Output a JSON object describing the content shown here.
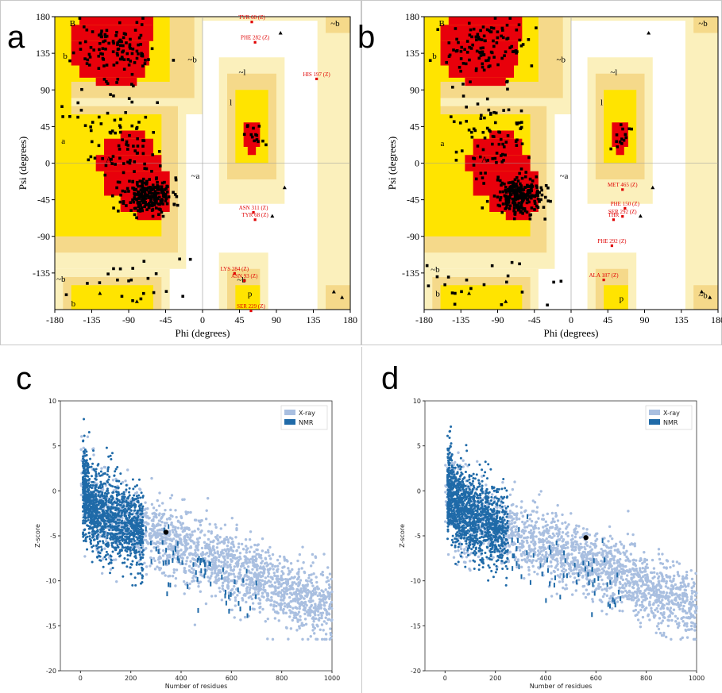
{
  "panels": {
    "a": "a",
    "b": "b",
    "c": "c",
    "d": "d"
  },
  "colors": {
    "favoured": "#e8000b",
    "allowed": "#ffe400",
    "generous": "#f5d98a",
    "outer": "#fbf0bc",
    "xray": "#a9bfe0",
    "nmr": "#1f6aa8",
    "point": "#000000",
    "residue_label": "#e00000"
  },
  "chart_data": [
    {
      "type": "scatter",
      "panel": "a",
      "xlabel": "Phi (degrees)",
      "ylabel": "Psi (degrees)",
      "xlim": [
        -180,
        180
      ],
      "ylim": [
        -180,
        180
      ],
      "x_ticks": [
        -180,
        -135,
        -90,
        -45,
        0,
        45,
        90,
        135,
        180
      ],
      "y_ticks": [
        -135,
        -90,
        -45,
        0,
        45,
        90,
        135,
        180
      ],
      "region_labels": [
        {
          "text": "B",
          "phi": -162,
          "psi": 172
        },
        {
          "text": "b",
          "phi": -170,
          "psi": 132
        },
        {
          "text": "~b",
          "phi": -18,
          "psi": 128
        },
        {
          "text": "A",
          "phi": -118,
          "psi": 5
        },
        {
          "text": "a",
          "phi": -172,
          "psi": 28
        },
        {
          "text": "~a",
          "phi": -14,
          "psi": -15
        },
        {
          "text": "~l",
          "phi": 44,
          "psi": 112
        },
        {
          "text": "l",
          "phi": 33,
          "psi": 75
        },
        {
          "text": "~b",
          "phi": -178,
          "psi": -142
        },
        {
          "text": "b",
          "phi": -160,
          "psi": -172
        },
        {
          "text": "~b",
          "phi": 156,
          "psi": 172
        },
        {
          "text": "~b",
          "phi": 42,
          "psi": -143
        },
        {
          "text": "p",
          "phi": 55,
          "psi": -160
        }
      ],
      "residue_labels": [
        {
          "text": "TYR 68 (Z)",
          "phi": 60,
          "psi": 177
        },
        {
          "text": "PHE 282 (Z)",
          "phi": 64,
          "psi": 152
        },
        {
          "text": "HIS 197 (Z)",
          "phi": 139,
          "psi": 107
        },
        {
          "text": "ASN 311 (Z)",
          "phi": 62,
          "psi": -57
        },
        {
          "text": "TYR 68 (Z)",
          "phi": 64,
          "psi": -66
        },
        {
          "text": "LYS 284 (Z)",
          "phi": 39,
          "psi": -132
        },
        {
          "text": "ASN 93 (Z)",
          "phi": 51,
          "psi": -141
        },
        {
          "text": "SER 229 (Z)",
          "phi": 59,
          "psi": -178
        }
      ],
      "points_description": "Dense cluster of residues in the right-handed alpha-helix region (phi about -65, psi about -40), scattered residues in the beta-sheet region, few in left-handed helix region"
    },
    {
      "type": "scatter",
      "panel": "b",
      "xlabel": "Phi (degrees)",
      "ylabel": "Psi (degrees)",
      "xlim": [
        -180,
        180
      ],
      "ylim": [
        -180,
        180
      ],
      "x_ticks": [
        -180,
        -135,
        -90,
        -45,
        0,
        45,
        90,
        135,
        180
      ],
      "y_ticks": [
        -135,
        -90,
        -45,
        0,
        45,
        90,
        135,
        180
      ],
      "region_labels": [
        {
          "text": "B",
          "phi": -162,
          "psi": 172
        },
        {
          "text": "b",
          "phi": -170,
          "psi": 132
        },
        {
          "text": "~b",
          "phi": -18,
          "psi": 128
        },
        {
          "text": "A",
          "phi": -110,
          "psi": 5
        },
        {
          "text": "a",
          "phi": -160,
          "psi": 25
        },
        {
          "text": "~a",
          "phi": -14,
          "psi": -15
        },
        {
          "text": "~l",
          "phi": 48,
          "psi": 112
        },
        {
          "text": "l",
          "phi": 36,
          "psi": 75
        },
        {
          "text": "~b",
          "phi": -172,
          "psi": -130
        },
        {
          "text": "b",
          "phi": -166,
          "psi": -160
        },
        {
          "text": "~b",
          "phi": 156,
          "psi": 172
        },
        {
          "text": "~b",
          "phi": 156,
          "psi": -162
        },
        {
          "text": "p",
          "phi": 59,
          "psi": -166
        }
      ],
      "residue_labels": [
        {
          "text": "MET 465 (Z)",
          "phi": 63,
          "psi": -29
        },
        {
          "text": "PHE 150 (Z)",
          "phi": 66,
          "psi": -52
        },
        {
          "text": "SER 292 (Z)",
          "phi": 63,
          "psi": -62
        },
        {
          "text": "THR",
          "phi": 52,
          "psi": -66
        },
        {
          "text": "PHE 292 (Z)",
          "phi": 50,
          "psi": -98
        },
        {
          "text": "ALA 187 (Z)",
          "phi": 40,
          "psi": -140
        }
      ],
      "points_description": "Dense cluster of residues in the right-handed alpha-helix region, many in the beta region, a group in the left-handed helix region"
    },
    {
      "type": "scatter",
      "panel": "c",
      "xlabel": "Number of residues",
      "ylabel": "Z-score",
      "xlim": [
        -80,
        1000
      ],
      "ylim": [
        -20,
        10
      ],
      "x_ticks": [
        0,
        200,
        400,
        600,
        800,
        1000
      ],
      "y_ticks": [
        10,
        5,
        0,
        -5,
        -10,
        -15,
        -20
      ],
      "legend": [
        "X-ray",
        "NMR"
      ],
      "legend_position": "top-right",
      "series": [
        {
          "name": "X-ray",
          "description": "reference X-ray structures, Z-score decreasing from about 0 to -13 with size"
        },
        {
          "name": "NMR",
          "description": "reference NMR structures, mostly below 300 residues"
        }
      ],
      "highlight": {
        "x": 340,
        "y": -4.6
      }
    },
    {
      "type": "scatter",
      "panel": "d",
      "xlabel": "Number of residues",
      "ylabel": "Z-score",
      "xlim": [
        -80,
        1000
      ],
      "ylim": [
        -20,
        10
      ],
      "x_ticks": [
        0,
        200,
        400,
        600,
        800,
        1000
      ],
      "y_ticks": [
        10,
        5,
        0,
        -5,
        -10,
        -15,
        -20
      ],
      "legend": [
        "X-ray",
        "NMR"
      ],
      "legend_position": "top-right",
      "series": [
        {
          "name": "X-ray",
          "description": "reference X-ray structures"
        },
        {
          "name": "NMR",
          "description": "reference NMR structures"
        }
      ],
      "highlight": {
        "x": 560,
        "y": -5.2
      }
    }
  ]
}
